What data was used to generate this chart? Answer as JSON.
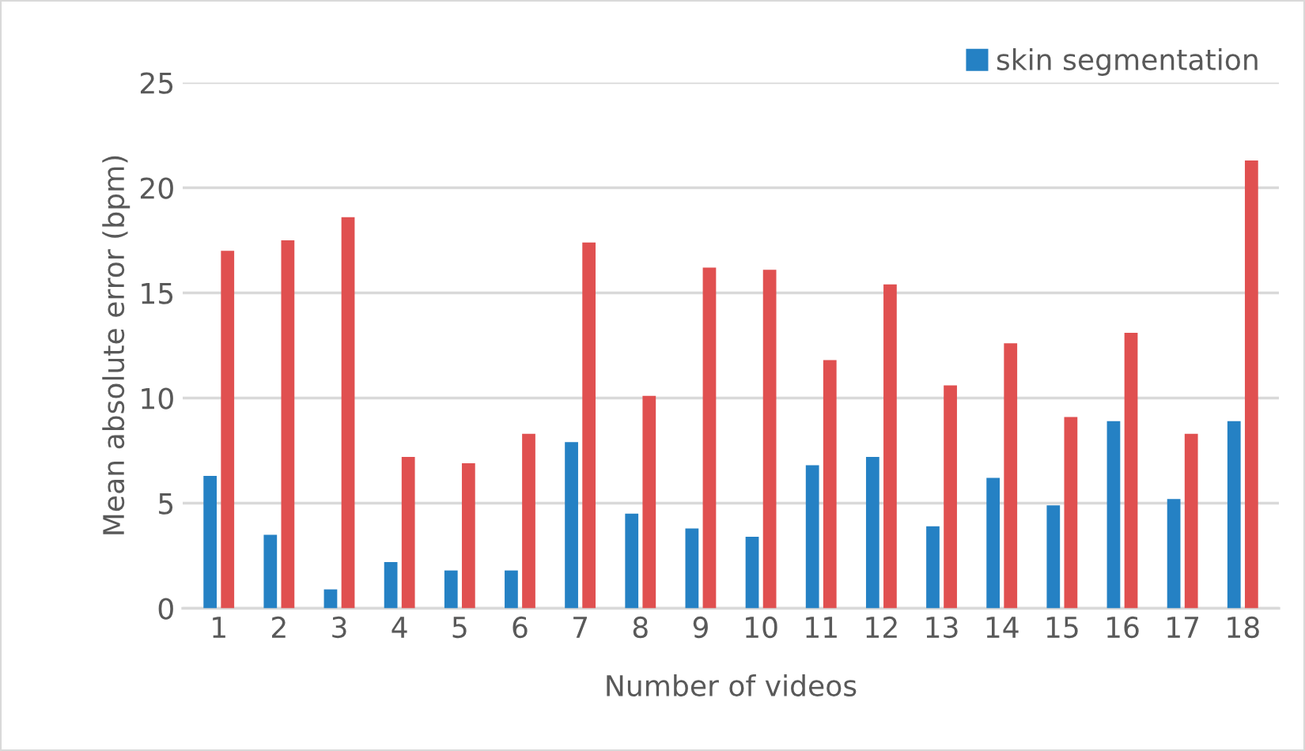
{
  "chart_data": {
    "type": "bar",
    "xlabel": "Number of videos",
    "ylabel": "Mean absolute error (bpm)",
    "categories": [
      "1",
      "2",
      "3",
      "4",
      "5",
      "6",
      "7",
      "8",
      "9",
      "10",
      "11",
      "12",
      "13",
      "14",
      "15",
      "16",
      "17",
      "18"
    ],
    "series": [
      {
        "name": "skin segmentation",
        "color": "#2581c4",
        "values": [
          6.3,
          3.5,
          0.9,
          2.2,
          1.8,
          1.8,
          7.9,
          4.5,
          3.8,
          3.4,
          6.8,
          7.2,
          3.9,
          6.2,
          4.9,
          8.9,
          5.2,
          8.9
        ]
      },
      {
        "color": "#e05050",
        "values": [
          17.0,
          17.5,
          18.6,
          7.2,
          6.9,
          8.3,
          17.4,
          10.1,
          16.2,
          16.1,
          11.8,
          15.4,
          10.6,
          12.6,
          9.1,
          13.1,
          8.3,
          21.3
        ]
      }
    ],
    "ylim": [
      0,
      25
    ],
    "yticks": [
      0,
      5,
      10,
      15,
      20,
      25
    ],
    "grid": "y",
    "legend": "top right"
  }
}
